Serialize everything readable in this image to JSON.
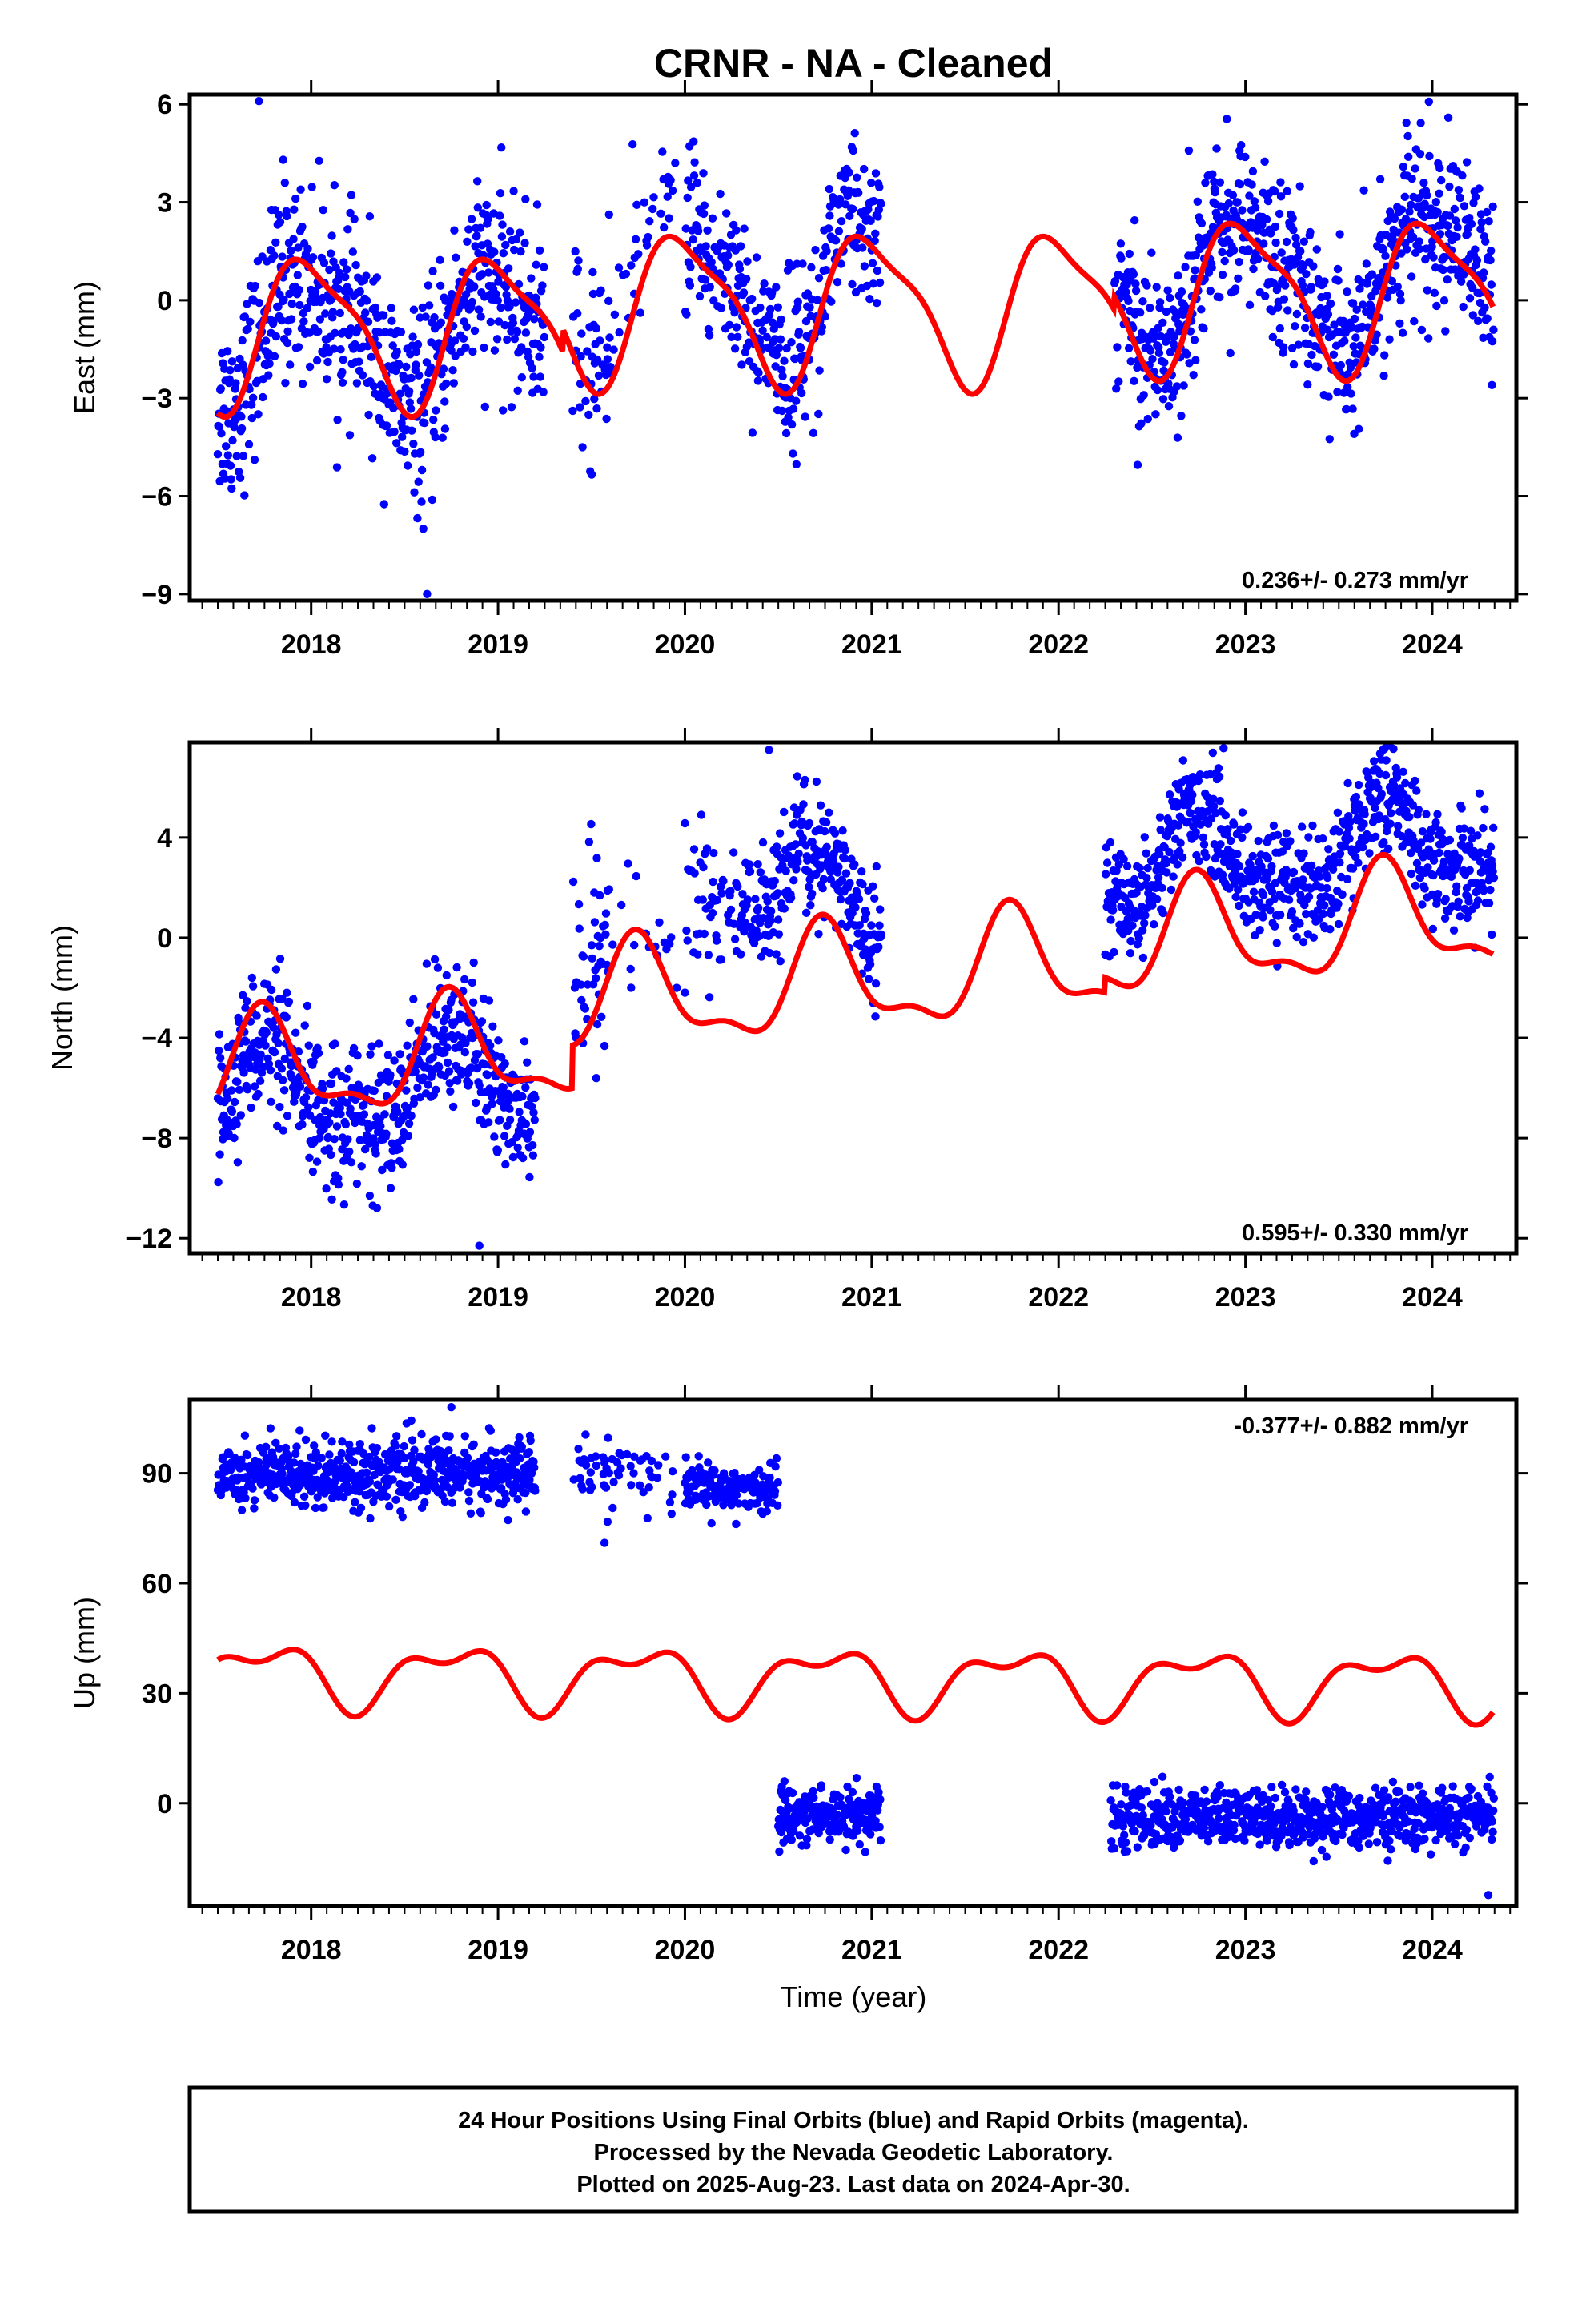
{
  "title": "CRNR  - NA - Cleaned",
  "xlabel": "Time (year)",
  "footer": {
    "lines": [
      "24 Hour Positions Using Final Orbits (blue) and Rapid Orbits (magenta).",
      "Processed by the Nevada Geodetic Laboratory.",
      "Plotted on 2025-Aug-23. Last data on 2024-Apr-30."
    ]
  },
  "colors": {
    "data": "#0000ff",
    "model": "#ff0000",
    "axes": "#000000"
  },
  "chart_data": [
    {
      "type": "scatter",
      "name": "east",
      "ylabel": "East (mm)",
      "rate_text": "0.236+/- 0.273 mm/yr",
      "xlim": [
        2017.35,
        2024.45
      ],
      "ylim": [
        -9.2,
        6.3
      ],
      "yticks": [
        -9,
        -6,
        -3,
        0,
        3,
        6
      ],
      "ytick_labels": [
        "−9",
        "−6",
        "−3",
        "0",
        "3",
        "6"
      ],
      "xticks": [
        2018,
        2019,
        2020,
        2021,
        2022,
        2023,
        2024
      ],
      "data_segments": [
        {
          "start": 2017.5,
          "end": 2019.25,
          "offset": -0.5,
          "noise": 1.4,
          "density": 1.0
        },
        {
          "start": 2019.4,
          "end": 2019.6,
          "offset": 0.2,
          "noise": 1.6,
          "density": 0.6
        },
        {
          "start": 2019.6,
          "end": 2019.95,
          "offset": 1.2,
          "noise": 1.2,
          "density": 0.25
        },
        {
          "start": 2020.0,
          "end": 2021.05,
          "offset": 0.4,
          "noise": 1.3,
          "density": 0.9
        },
        {
          "start": 2022.3,
          "end": 2024.33,
          "offset": 0.3,
          "noise": 1.3,
          "density": 1.0
        }
      ],
      "model": {
        "a0": -0.2,
        "a1": 2.2,
        "p1": 0.75,
        "a2": 0.6,
        "p2": 0.2,
        "segments": [
          {
            "start": 2017.5,
            "end": 2019.35,
            "offset": -0.7
          },
          {
            "start": 2019.35,
            "end": 2022.3,
            "offset": 0.0
          },
          {
            "start": 2022.3,
            "end": 2024.33,
            "offset": 0.4
          }
        ]
      },
      "outliers": [
        [
          2017.72,
          6.1
        ],
        [
          2018.62,
          -9.0
        ],
        [
          2018.6,
          -7.0
        ],
        [
          2017.85,
          4.3
        ]
      ]
    },
    {
      "type": "scatter",
      "name": "north",
      "ylabel": "North (mm)",
      "rate_text": "0.595+/- 0.330 mm/yr",
      "xlim": [
        2017.35,
        2024.45
      ],
      "ylim": [
        -12.6,
        7.8
      ],
      "yticks": [
        -12,
        -8,
        -4,
        0,
        4
      ],
      "ytick_labels": [
        "−12",
        "−8",
        "−4",
        "0",
        "4"
      ],
      "xticks": [
        2018,
        2019,
        2020,
        2021,
        2022,
        2023,
        2024
      ],
      "data_segments": [
        {
          "start": 2017.5,
          "end": 2019.2,
          "offset": -3.2,
          "noise": 1.4,
          "density": 1.0
        },
        {
          "start": 2019.4,
          "end": 2019.6,
          "offset": 0.5,
          "noise": 2.2,
          "density": 0.7
        },
        {
          "start": 2019.6,
          "end": 2020.0,
          "offset": -0.8,
          "noise": 1.5,
          "density": 0.2
        },
        {
          "start": 2020.0,
          "end": 2020.3,
          "offset": 2.5,
          "noise": 1.3,
          "density": 0.5
        },
        {
          "start": 2020.3,
          "end": 2020.65,
          "offset": 3.0,
          "noise": 1.3,
          "density": 0.9
        },
        {
          "start": 2020.65,
          "end": 2021.05,
          "offset": 0.9,
          "noise": 1.1,
          "density": 1.0
        },
        {
          "start": 2022.25,
          "end": 2024.33,
          "offset": 1.6,
          "noise": 1.1,
          "density": 1.0
        }
      ],
      "model": {
        "a0": -1.7,
        "a1": 2.0,
        "p1": 0.5,
        "a2": 0.8,
        "p2": 0.1,
        "trend": 0.595,
        "segments": [
          {
            "start": 2017.5,
            "end": 2019.4,
            "offset": -1.7
          },
          {
            "start": 2019.4,
            "end": 2022.25,
            "offset": 0.0
          },
          {
            "start": 2022.25,
            "end": 2024.33,
            "offset": 0.6
          }
        ]
      },
      "outliers": [
        [
          2018.9,
          -12.3
        ],
        [
          2020.45,
          7.5
        ]
      ]
    },
    {
      "type": "scatter",
      "name": "up",
      "ylabel": "Up (mm)",
      "rate_text": "-0.377+/- 0.882 mm/yr",
      "xlim": [
        2017.35,
        2024.45
      ],
      "ylim": [
        -28,
        110
      ],
      "yticks": [
        0,
        30,
        60,
        90
      ],
      "ytick_labels": [
        "0",
        "30",
        "60",
        "90"
      ],
      "xticks": [
        2018,
        2019,
        2020,
        2021,
        2022,
        2023,
        2024
      ],
      "data_segments": [
        {
          "start": 2017.5,
          "end": 2019.2,
          "offset": 90,
          "noise": 4.5,
          "density": 1.0
        },
        {
          "start": 2019.4,
          "end": 2019.95,
          "offset": 89,
          "noise": 4.5,
          "density": 0.35
        },
        {
          "start": 2020.0,
          "end": 2020.5,
          "offset": 86,
          "noise": 3.5,
          "density": 0.8
        },
        {
          "start": 2020.5,
          "end": 2021.05,
          "offset": -3,
          "noise": 4.0,
          "density": 1.0
        },
        {
          "start": 2022.28,
          "end": 2024.33,
          "offset": -4,
          "noise": 4.0,
          "density": 1.0
        }
      ],
      "model": {
        "a0": 34,
        "a1": 7.5,
        "p1": 0.5,
        "a2": 4.0,
        "p2": 0.35,
        "trend": -0.377,
        "segments": [
          {
            "start": 2017.5,
            "end": 2024.33,
            "offset": 0.0
          }
        ]
      },
      "outliers": [
        [
          2018.75,
          108
        ],
        [
          2019.57,
          71
        ],
        [
          2024.3,
          -25
        ]
      ]
    }
  ]
}
